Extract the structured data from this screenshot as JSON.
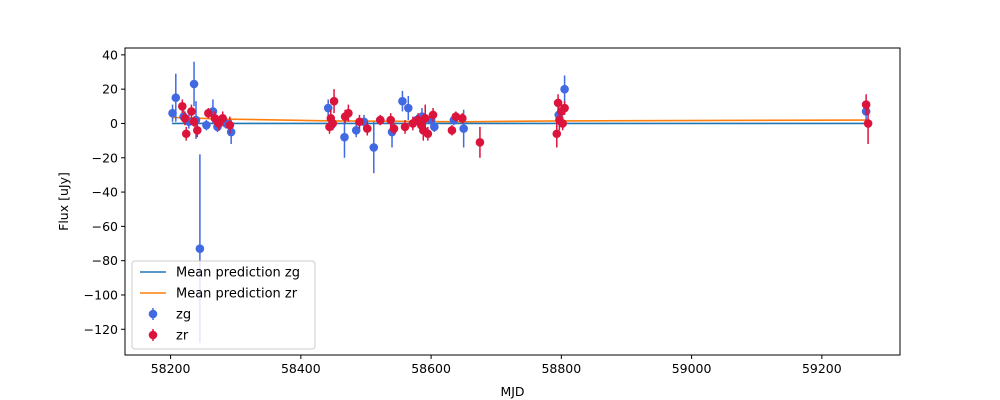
{
  "chart_data": {
    "type": "scatter",
    "title": "",
    "xlabel": "MJD",
    "ylabel": "Flux [uJy]",
    "xlim": [
      58130,
      59320
    ],
    "ylim": [
      -135,
      44
    ],
    "x_ticks": [
      58200,
      58400,
      58600,
      58800,
      59000,
      59200
    ],
    "y_ticks": [
      40,
      20,
      0,
      -20,
      -40,
      -60,
      -80,
      -100,
      -120
    ],
    "grid": false,
    "legend_position": "lower-left",
    "series": [
      {
        "name": "Mean prediction zg",
        "kind": "line",
        "color": "#1f77b4",
        "x": [
          58202,
          59272
        ],
        "y": [
          0,
          0
        ]
      },
      {
        "name": "Mean prediction zr",
        "kind": "line",
        "color": "#ff7f0e",
        "x": [
          58202,
          58290,
          58450,
          58650,
          58800,
          59270
        ],
        "y": [
          3.5,
          2.5,
          1.5,
          1.0,
          1.5,
          2.0
        ]
      },
      {
        "name": "zg",
        "kind": "errorbar",
        "color": "#4169e1",
        "points": [
          {
            "x": 58203,
            "y": 6,
            "err": 5
          },
          {
            "x": 58208,
            "y": 15,
            "err": 14
          },
          {
            "x": 58220,
            "y": 4,
            "err": 4
          },
          {
            "x": 58228,
            "y": 1,
            "err": 4
          },
          {
            "x": 58236,
            "y": 23,
            "err": 13
          },
          {
            "x": 58239,
            "y": 2,
            "err": 11
          },
          {
            "x": 58245,
            "y": -73,
            "err": 55
          },
          {
            "x": 58255,
            "y": -1,
            "err": 3
          },
          {
            "x": 58265,
            "y": 7,
            "err": 7
          },
          {
            "x": 58272,
            "y": -2,
            "err": 3
          },
          {
            "x": 58285,
            "y": 0,
            "err": 3
          },
          {
            "x": 58293,
            "y": -5,
            "err": 7
          },
          {
            "x": 58442,
            "y": 9,
            "err": 5
          },
          {
            "x": 58447,
            "y": -1,
            "err": 3
          },
          {
            "x": 58467,
            "y": -8,
            "err": 12
          },
          {
            "x": 58485,
            "y": -4,
            "err": 4
          },
          {
            "x": 58497,
            "y": 1,
            "err": 4
          },
          {
            "x": 58512,
            "y": -14,
            "err": 15
          },
          {
            "x": 58522,
            "y": 2,
            "err": 3
          },
          {
            "x": 58540,
            "y": -5,
            "err": 9
          },
          {
            "x": 58556,
            "y": 13,
            "err": 6
          },
          {
            "x": 58565,
            "y": 9,
            "err": 7
          },
          {
            "x": 58578,
            "y": 2,
            "err": 3
          },
          {
            "x": 58586,
            "y": 4,
            "err": 5
          },
          {
            "x": 58600,
            "y": 2,
            "err": 4
          },
          {
            "x": 58605,
            "y": -2,
            "err": 3
          },
          {
            "x": 58635,
            "y": 2,
            "err": 3
          },
          {
            "x": 58650,
            "y": -3,
            "err": 11
          },
          {
            "x": 58796,
            "y": 5,
            "err": 6
          },
          {
            "x": 58805,
            "y": 20,
            "err": 8
          },
          {
            "x": 59268,
            "y": 7,
            "err": 5
          }
        ]
      },
      {
        "name": "zr",
        "kind": "errorbar",
        "color": "#dc143c",
        "points": [
          {
            "x": 58218,
            "y": 10,
            "err": 4
          },
          {
            "x": 58222,
            "y": 3,
            "err": 4
          },
          {
            "x": 58224,
            "y": -6,
            "err": 4
          },
          {
            "x": 58232,
            "y": 7,
            "err": 4
          },
          {
            "x": 58236,
            "y": 1,
            "err": 3
          },
          {
            "x": 58241,
            "y": -4,
            "err": 4
          },
          {
            "x": 58258,
            "y": 6,
            "err": 3
          },
          {
            "x": 58268,
            "y": 3,
            "err": 4
          },
          {
            "x": 58274,
            "y": 0,
            "err": 4
          },
          {
            "x": 58280,
            "y": 3,
            "err": 4
          },
          {
            "x": 58291,
            "y": -1,
            "err": 5
          },
          {
            "x": 58444,
            "y": -2,
            "err": 4
          },
          {
            "x": 58446,
            "y": 3,
            "err": 5
          },
          {
            "x": 58449,
            "y": 0,
            "err": 4
          },
          {
            "x": 58451,
            "y": 13,
            "err": 7
          },
          {
            "x": 58468,
            "y": 4,
            "err": 4
          },
          {
            "x": 58473,
            "y": 6,
            "err": 5
          },
          {
            "x": 58490,
            "y": 1,
            "err": 4
          },
          {
            "x": 58502,
            "y": -3,
            "err": 4
          },
          {
            "x": 58522,
            "y": 2,
            "err": 3
          },
          {
            "x": 58538,
            "y": 2,
            "err": 4
          },
          {
            "x": 58543,
            "y": -3,
            "err": 3
          },
          {
            "x": 58560,
            "y": -2,
            "err": 4
          },
          {
            "x": 58572,
            "y": 0,
            "err": 4
          },
          {
            "x": 58580,
            "y": 2,
            "err": 4
          },
          {
            "x": 58585,
            "y": -1,
            "err": 5
          },
          {
            "x": 58588,
            "y": -4,
            "err": 6
          },
          {
            "x": 58591,
            "y": 3,
            "err": 8
          },
          {
            "x": 58595,
            "y": -6,
            "err": 4
          },
          {
            "x": 58603,
            "y": 5,
            "err": 4
          },
          {
            "x": 58632,
            "y": -4,
            "err": 3
          },
          {
            "x": 58638,
            "y": 4,
            "err": 3
          },
          {
            "x": 58648,
            "y": 3,
            "err": 3
          },
          {
            "x": 58675,
            "y": -11,
            "err": 9
          },
          {
            "x": 58793,
            "y": -6,
            "err": 8
          },
          {
            "x": 58795,
            "y": 12,
            "err": 5
          },
          {
            "x": 58797,
            "y": 2,
            "err": 6
          },
          {
            "x": 58800,
            "y": 7,
            "err": 5
          },
          {
            "x": 58802,
            "y": 0,
            "err": 4
          },
          {
            "x": 58805,
            "y": 9,
            "err": 4
          },
          {
            "x": 59268,
            "y": 11,
            "err": 6
          },
          {
            "x": 59271,
            "y": 0,
            "err": 12
          }
        ]
      }
    ]
  }
}
